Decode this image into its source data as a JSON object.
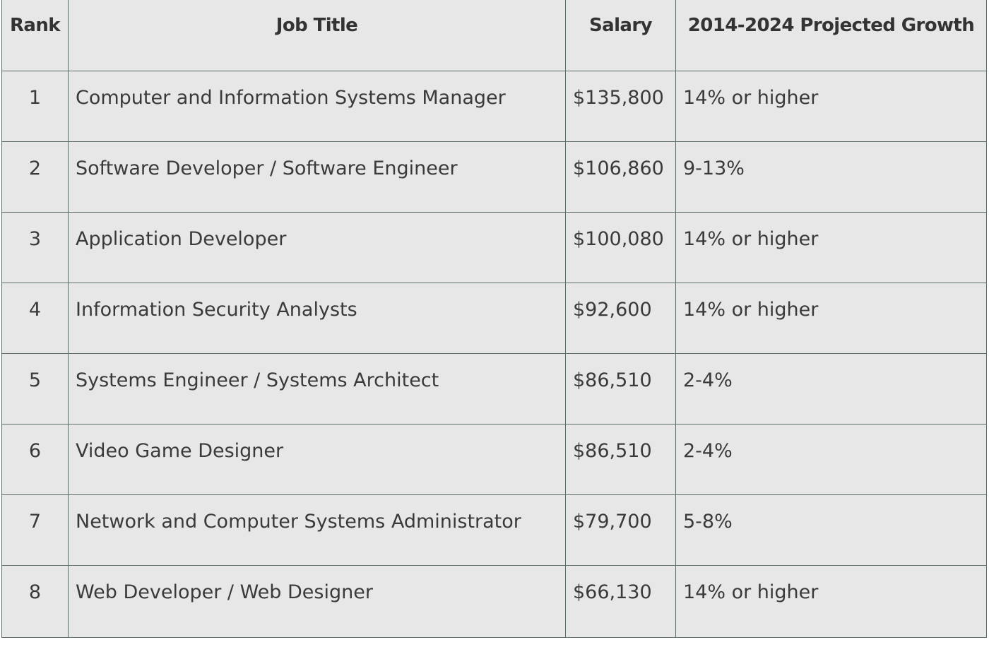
{
  "table": {
    "headers": {
      "rank": "Rank",
      "job_title": "Job Title",
      "salary": "Salary",
      "growth": "2014-2024 Projected Growth"
    },
    "rows": [
      {
        "rank": "1",
        "job_title": "Computer and Information Systems Manager",
        "salary": "$135,800",
        "growth": "14% or higher"
      },
      {
        "rank": "2",
        "job_title": "Software Developer / Software Engineer",
        "salary": "$106,860",
        "growth": "9-13%"
      },
      {
        "rank": "3",
        "job_title": "Application Developer",
        "salary": "$100,080",
        "growth": "14% or higher"
      },
      {
        "rank": "4",
        "job_title": "Information Security Analysts",
        "salary": "$92,600",
        "growth": "14% or higher"
      },
      {
        "rank": "5",
        "job_title": "Systems Engineer / Systems Architect",
        "salary": "$86,510",
        "growth": "2-4%"
      },
      {
        "rank": "6",
        "job_title": "Video Game Designer",
        "salary": "$86,510",
        "growth": "2-4%"
      },
      {
        "rank": "7",
        "job_title": "Network and Computer Systems Administrator",
        "salary": "$79,700",
        "growth": "5-8%"
      },
      {
        "rank": "8",
        "job_title": "Web Developer / Web Designer",
        "salary": "$66,130",
        "growth": "14% or higher"
      }
    ]
  },
  "colors": {
    "cell_background": "#e7e7e7",
    "border": "#5f6b6a",
    "text": "#3a3a3a"
  }
}
